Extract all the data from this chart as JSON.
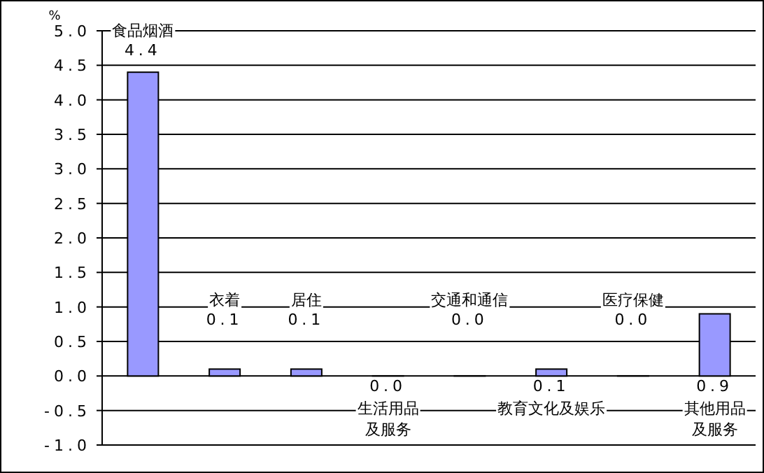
{
  "chart_data": {
    "type": "bar",
    "ylabel": "%",
    "categories": [
      "食品烟酒",
      "衣着",
      "居住",
      "生活用品及服务",
      "交通和通信",
      "教育文化及娱乐",
      "医疗保健",
      "其他用品及服务"
    ],
    "values": [
      4.4,
      0.1,
      0.1,
      0.0,
      0.0,
      0.1,
      0.0,
      0.9
    ],
    "value_labels": [
      "4.4",
      "0.1",
      "0.1",
      "0.0",
      "0.0",
      "0.1",
      "0.0",
      "0.9"
    ],
    "color": "#9999ff",
    "ylim": [
      -1.0,
      5.0
    ],
    "yticks": [
      {
        "value": -1.0,
        "label": "-1.0"
      },
      {
        "value": -0.5,
        "label": "-0.5"
      },
      {
        "value": 0.0,
        "label": "0.0"
      },
      {
        "value": 0.5,
        "label": "0.5"
      },
      {
        "value": 1.0,
        "label": "1.0"
      },
      {
        "value": 1.5,
        "label": "1.5"
      },
      {
        "value": 2.0,
        "label": "2.0"
      },
      {
        "value": 2.5,
        "label": "2.5"
      },
      {
        "value": 3.0,
        "label": "3.0"
      },
      {
        "value": 3.5,
        "label": "3.5"
      },
      {
        "value": 4.0,
        "label": "4.0"
      },
      {
        "value": 4.5,
        "label": "4.5"
      },
      {
        "value": 5.0,
        "label": "5.0"
      }
    ],
    "grid": "y",
    "tick_labels": "y"
  }
}
